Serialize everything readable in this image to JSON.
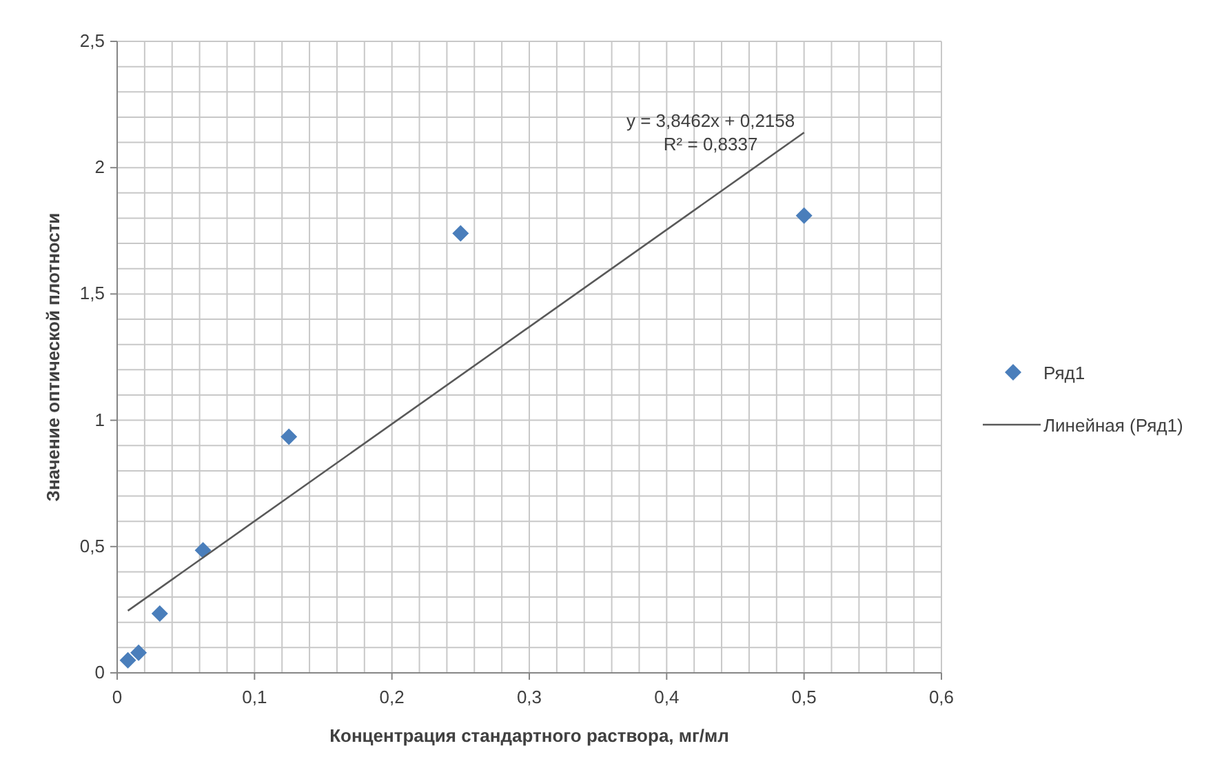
{
  "chart_data": {
    "type": "scatter",
    "xlabel": "Концентрация стандартного раствора, мг/мл",
    "ylabel": "Значение оптической плотности",
    "x": [
      0.0078,
      0.0156,
      0.031,
      0.0625,
      0.125,
      0.25,
      0.5
    ],
    "series": [
      {
        "name": "Ряд1",
        "color": "#4a7ebb",
        "marker": "diamond",
        "values": [
          0.05,
          0.08,
          0.235,
          0.485,
          0.935,
          1.74,
          1.81
        ]
      },
      {
        "name": "Линейная (Ряд1)",
        "type": "line",
        "color": "#595959",
        "marker": "none",
        "x": [
          0.0078,
          0.5
        ],
        "values": [
          0.246,
          2.139
        ]
      }
    ],
    "xlim": [
      0,
      0.6
    ],
    "xticks": [
      {
        "value": 0,
        "label": "0"
      },
      {
        "value": 0.1,
        "label": "0,1"
      },
      {
        "value": 0.2,
        "label": "0,2"
      },
      {
        "value": 0.3,
        "label": "0,3"
      },
      {
        "value": 0.4,
        "label": "0,4"
      },
      {
        "value": 0.5,
        "label": "0,5"
      },
      {
        "value": 0.6,
        "label": "0,6"
      }
    ],
    "ylim": [
      0,
      2.5
    ],
    "yticks": [
      {
        "value": 0,
        "label": "0"
      },
      {
        "value": 0.5,
        "label": "0,5"
      },
      {
        "value": 1,
        "label": "1"
      },
      {
        "value": 1.5,
        "label": "1,5"
      },
      {
        "value": 2,
        "label": "2"
      },
      {
        "value": 2.5,
        "label": "2,5"
      }
    ],
    "grid": true,
    "legend": "right",
    "annotations": [
      "y = 3,8462x + 0,2158",
      "R² = 0,8337"
    ]
  }
}
